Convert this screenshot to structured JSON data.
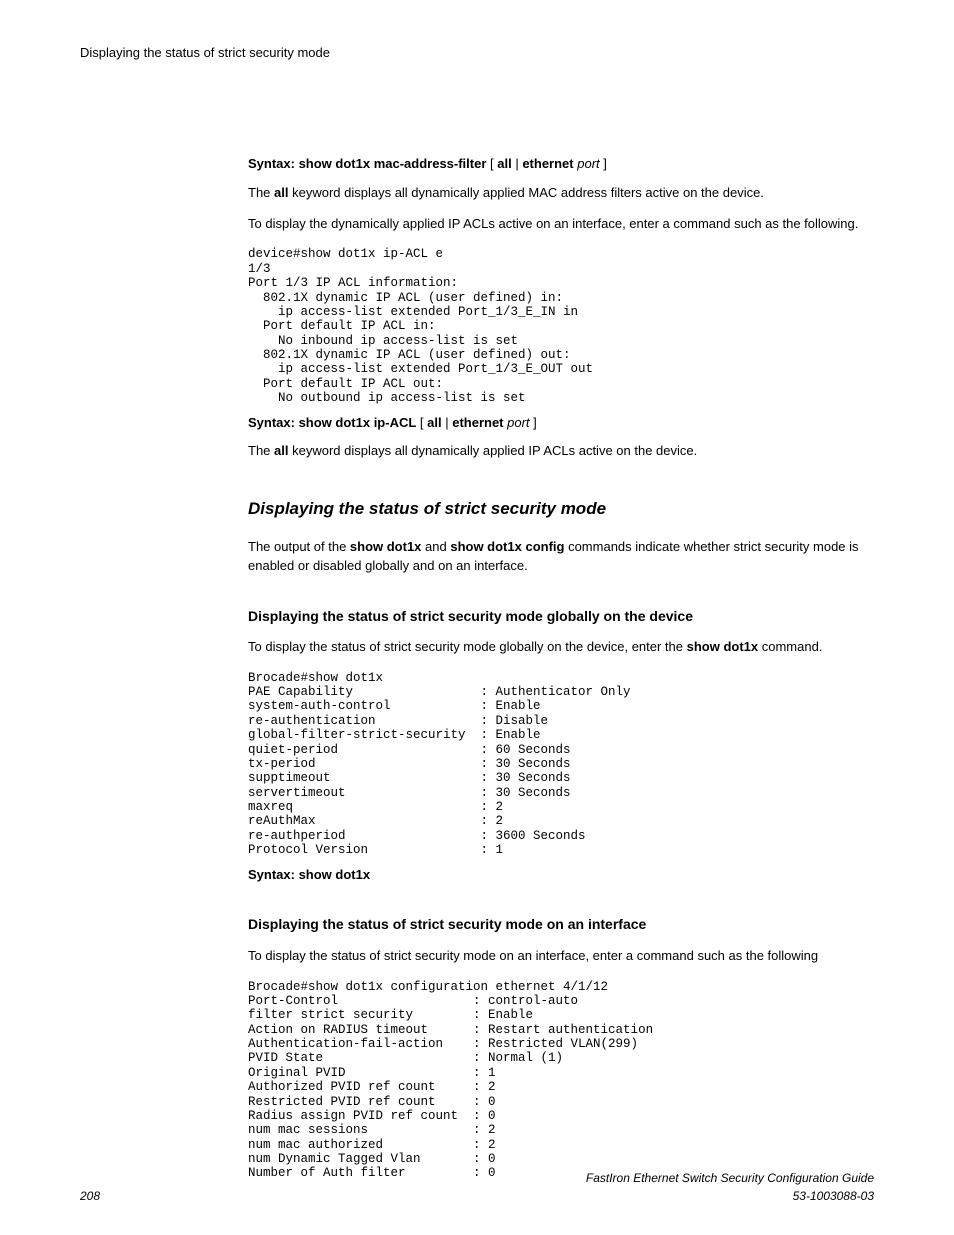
{
  "runningHead": "Displaying the status of strict security mode",
  "block1": {
    "syntax": {
      "prefix": "Syntax: show dot1x mac-address-filter",
      "sep1": " [ ",
      "kw1": "all",
      "pipe": " | ",
      "kw2": "ethernet",
      "space": " ",
      "arg": "port",
      "close": " ]"
    },
    "p1a": "The ",
    "p1b": "all",
    "p1c": " keyword displays all dynamically applied MAC address filters active on the device.",
    "p2": "To display the dynamically applied IP ACLs active on an interface, enter a command such as the following.",
    "code": "device#show dot1x ip-ACL e \n1/3\nPort 1/3 IP ACL information:\n  802.1X dynamic IP ACL (user defined) in:\n    ip access-list extended Port_1/3_E_IN in\n  Port default IP ACL in:\n    No inbound ip access-list is set\n  802.1X dynamic IP ACL (user defined) out:\n    ip access-list extended Port_1/3_E_OUT out\n  Port default IP ACL out:\n    No outbound ip access-list is set"
  },
  "block2": {
    "syntax": {
      "prefix": "Syntax: show dot1x ip-ACL",
      "sep1": " [ ",
      "kw1": "all",
      "pipe": " | ",
      "kw2": "ethernet",
      "space": " ",
      "arg": "port",
      "close": " ]"
    },
    "p1a": "The ",
    "p1b": "all",
    "p1c": " keyword displays all dynamically applied IP ACLs active on the device."
  },
  "section": {
    "title": "Displaying the status of strict security mode",
    "intro_a": "The output of the ",
    "intro_b": "show dot1x",
    "intro_c": " and ",
    "intro_d": "show dot1x config",
    "intro_e": " commands indicate whether strict security mode is enabled or disabled globally and on an interface."
  },
  "sub1": {
    "title": "Displaying the status of strict security mode globally on the device",
    "p_a": "To display the status of strict security mode globally on the device, enter the ",
    "p_b": "show dot1x",
    "p_c": " command.",
    "code": "Brocade#show dot1x\nPAE Capability                 : Authenticator Only\nsystem-auth-control            : Enable\nre-authentication              : Disable\nglobal-filter-strict-security  : Enable\nquiet-period                   : 60 Seconds\ntx-period                      : 30 Seconds\nsupptimeout                    : 30 Seconds\nservertimeout                  : 30 Seconds\nmaxreq                         : 2\nreAuthMax                      : 2\nre-authperiod                  : 3600 Seconds\nProtocol Version               : 1",
    "syntax": "Syntax: show dot1x"
  },
  "sub2": {
    "title": "Displaying the status of strict security mode on an interface",
    "p": "To display the status of strict security mode on an interface, enter a command such as the following",
    "code": "Brocade#show dot1x configuration ethernet 4/1/12\nPort-Control                  : control-auto\nfilter strict security        : Enable\nAction on RADIUS timeout      : Restart authentication\nAuthentication-fail-action    : Restricted VLAN(299)\nPVID State                    : Normal (1)\nOriginal PVID                 : 1\nAuthorized PVID ref count     : 2\nRestricted PVID ref count     : 0\nRadius assign PVID ref count  : 0\nnum mac sessions              : 2\nnum mac authorized            : 2\nnum Dynamic Tagged Vlan       : 0\nNumber of Auth filter         : 0"
  },
  "footer": {
    "page": "208",
    "title": "FastIron Ethernet Switch Security Configuration Guide",
    "docnum": "53-1003088-03"
  }
}
